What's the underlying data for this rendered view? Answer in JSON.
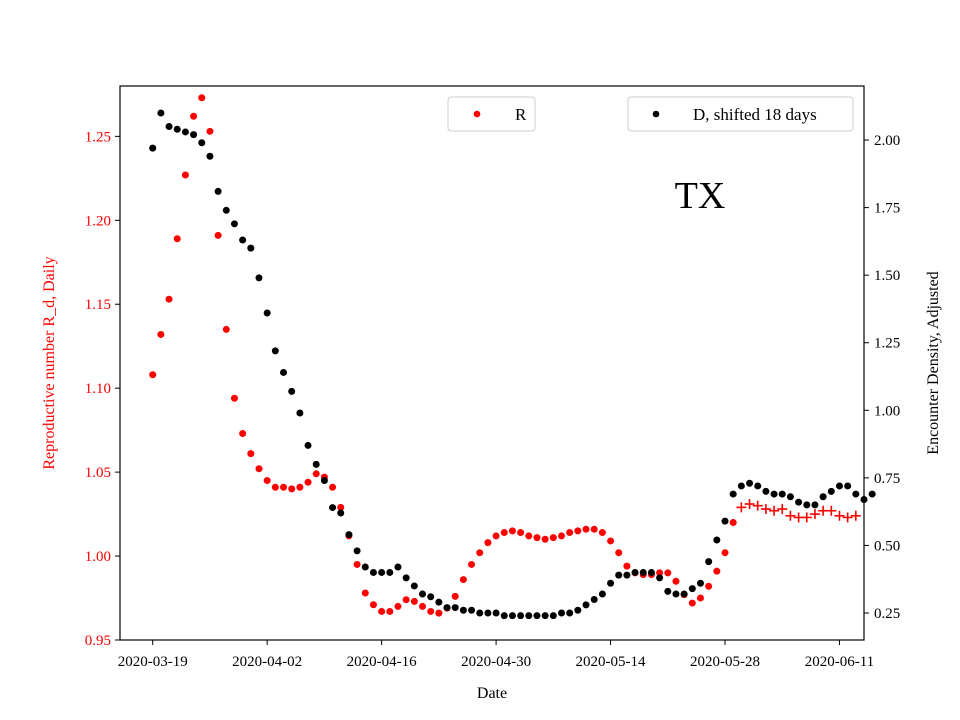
{
  "chart_data": {
    "type": "scatter",
    "annotation": "TX",
    "xlabel": "Date",
    "ylabel_left": "Reproductive number R_d, Daily",
    "ylabel_right": "Encounter Density, Adjusted",
    "xlim": [
      "2020-03-15",
      "2020-06-14"
    ],
    "ylim_left": [
      0.95,
      1.28
    ],
    "ylim_right": [
      0.15,
      2.2
    ],
    "x_ticks": [
      "2020-03-19",
      "2020-04-02",
      "2020-04-16",
      "2020-04-30",
      "2020-05-14",
      "2020-05-28",
      "2020-06-11"
    ],
    "y_ticks_left": [
      "0.95",
      "1.00",
      "1.05",
      "1.10",
      "1.15",
      "1.20",
      "1.25"
    ],
    "y_ticks_right": [
      "0.25",
      "0.50",
      "0.75",
      "1.00",
      "1.25",
      "1.50",
      "1.75",
      "2.00"
    ],
    "legend": [
      {
        "label": "R",
        "color": "#ff0000",
        "position": "top-center"
      },
      {
        "label": "D, shifted 18 days",
        "color": "#000000",
        "position": "top-right"
      }
    ],
    "colors": {
      "left_axis": "#ff0000",
      "right_axis": "#000000"
    },
    "series": [
      {
        "name": "R",
        "axis": "left",
        "color": "#ff0000",
        "marker": "dot",
        "start_date": "2020-03-19",
        "values": [
          1.108,
          1.132,
          1.153,
          1.189,
          1.227,
          1.262,
          1.273,
          1.253,
          1.191,
          1.135,
          1.094,
          1.073,
          1.061,
          1.052,
          1.045,
          1.041,
          1.041,
          1.04,
          1.041,
          1.044,
          1.049,
          1.047,
          1.041,
          1.029,
          1.012,
          0.995,
          0.978,
          0.971,
          0.967,
          0.967,
          0.97,
          0.974,
          0.973,
          0.97,
          0.967,
          0.966,
          0.969,
          0.976,
          0.986,
          0.995,
          1.002,
          1.008,
          1.012,
          1.014,
          1.015,
          1.014,
          1.012,
          1.011,
          1.01,
          1.011,
          1.012,
          1.014,
          1.015,
          1.016,
          1.016,
          1.014,
          1.009,
          1.002,
          0.994,
          0.99,
          0.989,
          0.989,
          0.99,
          0.99,
          0.985,
          0.977,
          0.972,
          0.975,
          0.982,
          0.991,
          1.002,
          1.02
        ]
      },
      {
        "name": "R",
        "axis": "left",
        "color": "#ff0000",
        "marker": "plus",
        "start_date": "2020-05-30",
        "values": [
          1.029,
          1.031,
          1.03,
          1.028,
          1.027,
          1.028,
          1.024,
          1.023,
          1.023,
          1.025,
          1.027,
          1.027,
          1.024,
          1.023,
          1.024
        ]
      },
      {
        "name": "D, shifted 18 days",
        "axis": "right",
        "color": "#000000",
        "marker": "dot",
        "start_date": "2020-03-19",
        "values": [
          1.97,
          2.1,
          2.05,
          2.04,
          2.03,
          2.02,
          1.99,
          1.94,
          1.81,
          1.74,
          1.69,
          1.63,
          1.6,
          1.49,
          1.36,
          1.22,
          1.14,
          1.07,
          0.99,
          0.87,
          0.8,
          0.74,
          0.64,
          0.62,
          0.54,
          0.48,
          0.42,
          0.4,
          0.4,
          0.4,
          0.42,
          0.38,
          0.35,
          0.32,
          0.31,
          0.29,
          0.27,
          0.27,
          0.26,
          0.26,
          0.25,
          0.25,
          0.25,
          0.24,
          0.24,
          0.24,
          0.24,
          0.24,
          0.24,
          0.24,
          0.25,
          0.25,
          0.26,
          0.28,
          0.3,
          0.32,
          0.36,
          0.39,
          0.39,
          0.4,
          0.4,
          0.4,
          0.38,
          0.33,
          0.32,
          0.32,
          0.34,
          0.36,
          0.44,
          0.52,
          0.59,
          0.69,
          0.72,
          0.73,
          0.72,
          0.7,
          0.69,
          0.69,
          0.68,
          0.66,
          0.65,
          0.65,
          0.68,
          0.7,
          0.72,
          0.72,
          0.69,
          0.67,
          0.69
        ]
      }
    ]
  }
}
